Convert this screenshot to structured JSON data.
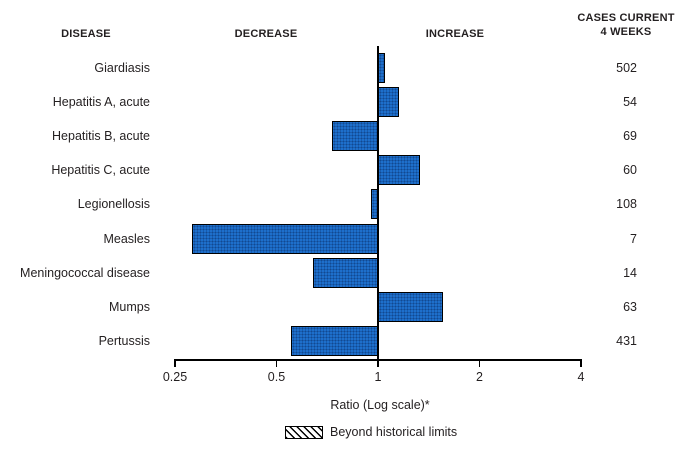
{
  "header": {
    "disease": "DISEASE",
    "decrease": "DECREASE",
    "increase": "INCREASE",
    "cases_line1": "CASES CURRENT",
    "cases_line2": "4 WEEKS"
  },
  "chart_data": {
    "type": "bar",
    "orientation": "horizontal",
    "scale": "log2",
    "baseline": 1,
    "title": "",
    "xlabel": "Ratio (Log scale)*",
    "xlim": [
      0.25,
      4
    ],
    "ticks": [
      0.25,
      0.5,
      1,
      2,
      4
    ],
    "tick_labels": [
      "0.25",
      "0.5",
      "1",
      "2",
      "4"
    ],
    "legend": "Beyond historical limits",
    "bar_color": "#1e6fcb",
    "line_color": "#000000",
    "diseases": [
      {
        "name": "Giardiasis",
        "ratio": 1.05,
        "cases": "502",
        "beyond_historical_limits": false
      },
      {
        "name": "Hepatitis A, acute",
        "ratio": 1.15,
        "cases": "54",
        "beyond_historical_limits": false
      },
      {
        "name": "Hepatitis B, acute",
        "ratio": 0.73,
        "cases": "69",
        "beyond_historical_limits": false
      },
      {
        "name": "Hepatitis C, acute",
        "ratio": 1.33,
        "cases": "60",
        "beyond_historical_limits": false
      },
      {
        "name": "Legionellosis",
        "ratio": 0.95,
        "cases": "108",
        "beyond_historical_limits": false
      },
      {
        "name": "Measles",
        "ratio": 0.28,
        "cases": "7",
        "beyond_historical_limits": false
      },
      {
        "name": "Meningococcal disease",
        "ratio": 0.64,
        "cases": "14",
        "beyond_historical_limits": false
      },
      {
        "name": "Mumps",
        "ratio": 1.56,
        "cases": "63",
        "beyond_historical_limits": false
      },
      {
        "name": "Pertussis",
        "ratio": 0.55,
        "cases": "431",
        "beyond_historical_limits": false
      }
    ]
  }
}
